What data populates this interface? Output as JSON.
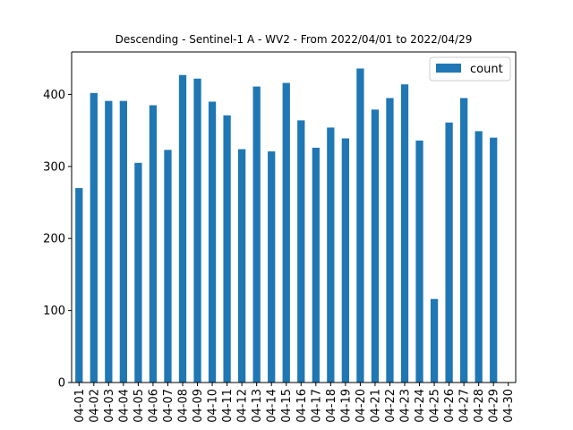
{
  "chart_data": {
    "type": "bar",
    "title": "Descending - Sentinel-1 A - WV2 - From 2022/04/01 to 2022/04/29",
    "xlabel": "",
    "ylabel": "",
    "categories": [
      "04-01",
      "04-02",
      "04-03",
      "04-04",
      "04-05",
      "04-06",
      "04-07",
      "04-08",
      "04-09",
      "04-10",
      "04-11",
      "04-12",
      "04-13",
      "04-14",
      "04-15",
      "04-16",
      "04-17",
      "04-18",
      "04-19",
      "04-20",
      "04-21",
      "04-22",
      "04-23",
      "04-24",
      "04-25",
      "04-26",
      "04-27",
      "04-28",
      "04-29",
      "04-30"
    ],
    "series": [
      {
        "name": "count",
        "color": "#1f77b4",
        "values": [
          270,
          402,
          391,
          391,
          305,
          385,
          323,
          427,
          422,
          390,
          371,
          324,
          411,
          321,
          416,
          364,
          326,
          354,
          339,
          436,
          379,
          395,
          414,
          336,
          116,
          361,
          395,
          349,
          340,
          0
        ]
      }
    ],
    "ylim": [
      0,
      459
    ],
    "yticks": [
      0,
      100,
      200,
      300,
      400
    ],
    "grid": false,
    "legend_position": "top-right"
  }
}
